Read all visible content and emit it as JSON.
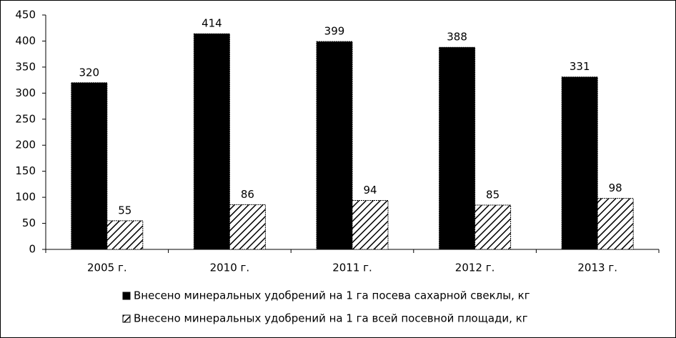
{
  "chart_data": {
    "type": "bar",
    "categories": [
      "2005 г.",
      "2010 г.",
      "2011 г.",
      "2012 г.",
      "2013 г."
    ],
    "series": [
      {
        "name": "Внесено минеральных удобрений на 1 га посева сахарной свеклы, кг",
        "color": "#000000",
        "pattern": "solid",
        "values": [
          320,
          414,
          399,
          388,
          331
        ]
      },
      {
        "name": "Внесено минеральных удобрений на 1 га всей посевной площади, кг",
        "color": "#000000",
        "pattern": "hatch",
        "values": [
          55,
          86,
          94,
          85,
          98
        ]
      }
    ],
    "ylim": [
      0,
      450
    ],
    "yticks": [
      0,
      50,
      100,
      150,
      200,
      250,
      300,
      350,
      400,
      450
    ],
    "grid": false,
    "legend": "bottom"
  }
}
